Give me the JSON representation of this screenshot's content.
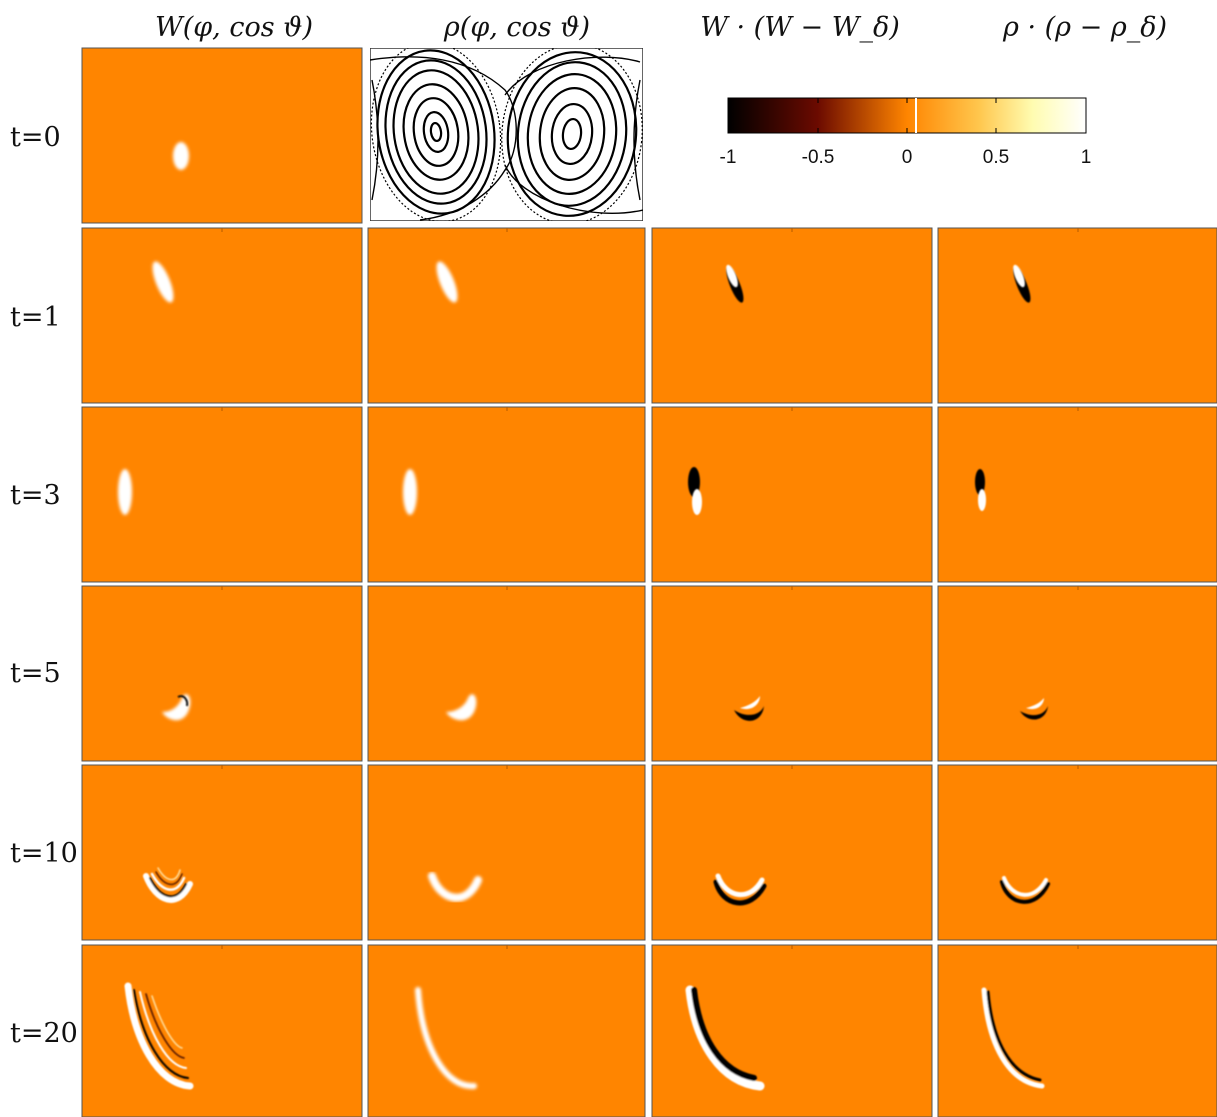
{
  "figure": {
    "columns": [
      {
        "id": "W",
        "title": "W(φ, cos ϑ)"
      },
      {
        "id": "rho",
        "title": "ρ(φ, cos ϑ)"
      },
      {
        "id": "W_diff",
        "title": "W · (W − W_δ)"
      },
      {
        "id": "rho_diff",
        "title": "ρ · (ρ − ρ_δ)"
      }
    ],
    "rows": [
      {
        "label": "t=0"
      },
      {
        "label": "t=1"
      },
      {
        "label": "t=3"
      },
      {
        "label": "t=5"
      },
      {
        "label": "t=10"
      },
      {
        "label": "t=20"
      }
    ],
    "colorbar": {
      "ticks": [
        "-1",
        "-0.5",
        "0",
        "0.5",
        "1"
      ],
      "range": [
        -1,
        1
      ],
      "colormap": [
        "#000000",
        "#6b0a00",
        "#ff8500",
        "#ffc64d",
        "#fffcb0",
        "#ffffff"
      ]
    },
    "colors": {
      "background_field": "#ff8500",
      "peak": "#ffffff",
      "trough": "#000000",
      "phase_portrait_lines": "#000000"
    }
  }
}
